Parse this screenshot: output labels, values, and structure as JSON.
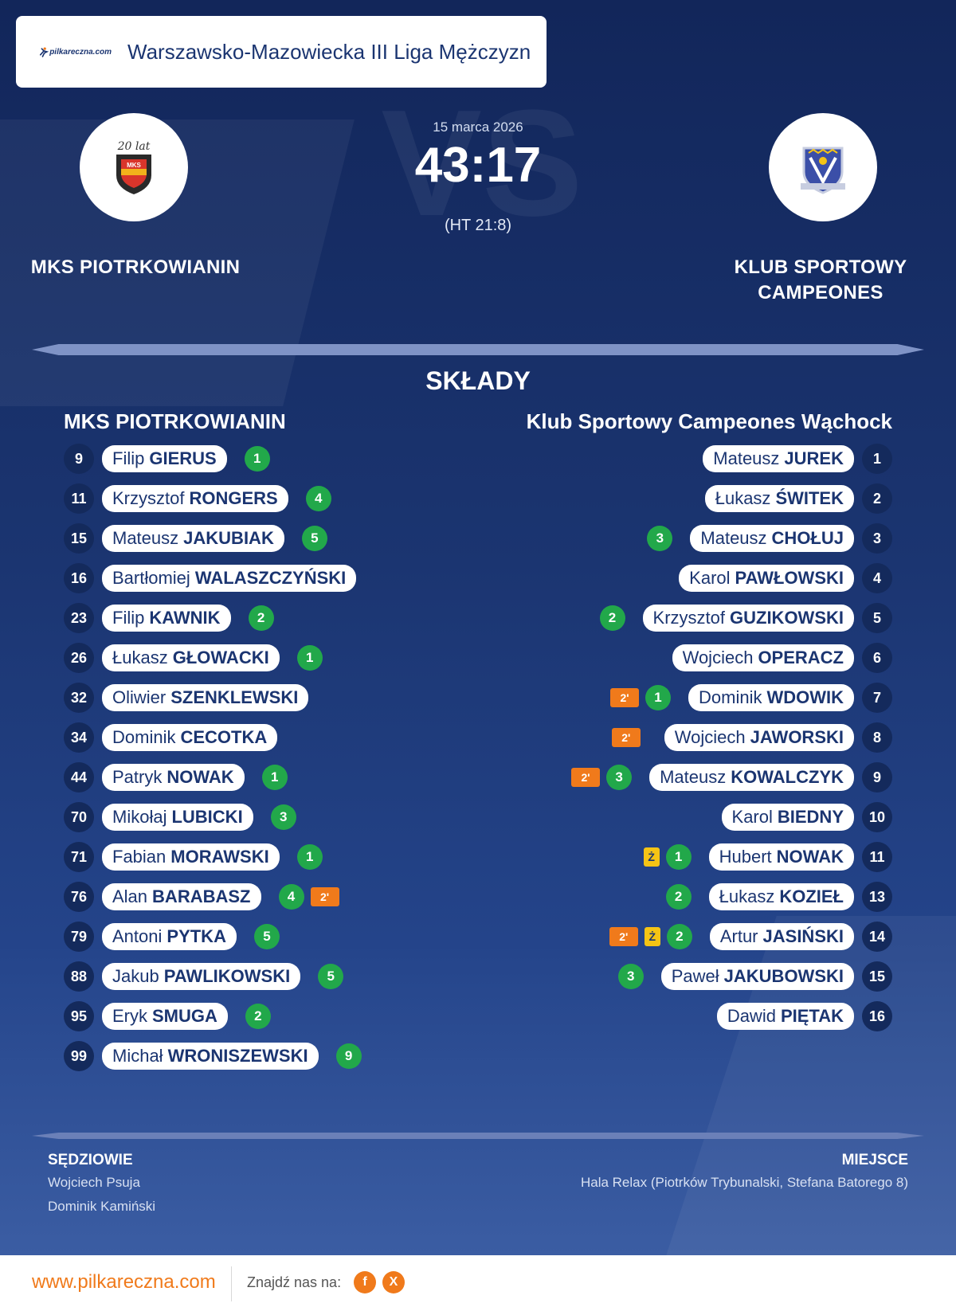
{
  "league": {
    "title": "Warszawsko-Mazowiecka III Liga Mężczyzn",
    "logo_text": "pilkareczna.com"
  },
  "match": {
    "date": "15 marca 2026",
    "score": "43:17",
    "halftime": "(HT 21:8)",
    "home_team": "MKS PIOTRKOWIANIN",
    "away_team_line1": "KLUB SPORTOWY",
    "away_team_line2": "CAMPEONES",
    "home_crest_text": "20 lat",
    "vs_watermark": "VS"
  },
  "lineups": {
    "title": "SKŁADY",
    "home_title": "MKS PIOTRKOWIANIN",
    "away_title": "Klub Sportowy Campeones Wąchock",
    "home_players": [
      {
        "num": "9",
        "first": "Filip",
        "last": "GIERUS",
        "goals": "1",
        "cards": []
      },
      {
        "num": "11",
        "first": "Krzysztof",
        "last": "RONGERS",
        "goals": "4",
        "cards": []
      },
      {
        "num": "15",
        "first": "Mateusz",
        "last": "JAKUBIAK",
        "goals": "5",
        "cards": []
      },
      {
        "num": "16",
        "first": "Bartłomiej",
        "last": "WALASZCZYŃSKI",
        "goals": "",
        "cards": []
      },
      {
        "num": "23",
        "first": "Filip",
        "last": "KAWNIK",
        "goals": "2",
        "cards": []
      },
      {
        "num": "26",
        "first": "Łukasz",
        "last": "GŁOWACKI",
        "goals": "1",
        "cards": []
      },
      {
        "num": "32",
        "first": "Oliwier",
        "last": "SZENKLEWSKI",
        "goals": "",
        "cards": []
      },
      {
        "num": "34",
        "first": "Dominik",
        "last": "CECOTKA",
        "goals": "",
        "cards": []
      },
      {
        "num": "44",
        "first": "Patryk",
        "last": "NOWAK",
        "goals": "1",
        "cards": []
      },
      {
        "num": "70",
        "first": "Mikołaj",
        "last": "LUBICKI",
        "goals": "3",
        "cards": []
      },
      {
        "num": "71",
        "first": "Fabian",
        "last": "MORAWSKI",
        "goals": "1",
        "cards": []
      },
      {
        "num": "76",
        "first": "Alan",
        "last": "BARABASZ",
        "goals": "4",
        "cards": [
          "2'"
        ]
      },
      {
        "num": "79",
        "first": "Antoni",
        "last": "PYTKA",
        "goals": "5",
        "cards": []
      },
      {
        "num": "88",
        "first": "Jakub",
        "last": "PAWLIKOWSKI",
        "goals": "5",
        "cards": []
      },
      {
        "num": "95",
        "first": "Eryk",
        "last": "SMUGA",
        "goals": "2",
        "cards": []
      },
      {
        "num": "99",
        "first": "Michał",
        "last": "WRONISZEWSKI",
        "goals": "9",
        "cards": []
      }
    ],
    "away_players": [
      {
        "num": "1",
        "first": "Mateusz",
        "last": "JUREK",
        "goals": "",
        "cards": []
      },
      {
        "num": "2",
        "first": "Łukasz",
        "last": "ŚWITEK",
        "goals": "",
        "cards": []
      },
      {
        "num": "3",
        "first": "Mateusz",
        "last": "CHOŁUJ",
        "goals": "3",
        "cards": []
      },
      {
        "num": "4",
        "first": "Karol",
        "last": "PAWŁOWSKI",
        "goals": "",
        "cards": []
      },
      {
        "num": "5",
        "first": "Krzysztof",
        "last": "GUZIKOWSKI",
        "goals": "2",
        "cards": []
      },
      {
        "num": "6",
        "first": "Wojciech",
        "last": "OPERACZ",
        "goals": "",
        "cards": []
      },
      {
        "num": "7",
        "first": "Dominik",
        "last": "WDOWIK",
        "goals": "1",
        "cards": [
          "2'"
        ]
      },
      {
        "num": "8",
        "first": "Wojciech",
        "last": "JAWORSKI",
        "goals": "",
        "cards": [
          "2'"
        ]
      },
      {
        "num": "9",
        "first": "Mateusz",
        "last": "KOWALCZYK",
        "goals": "3",
        "cards": [
          "2'"
        ]
      },
      {
        "num": "10",
        "first": "Karol",
        "last": "BIEDNY",
        "goals": "",
        "cards": []
      },
      {
        "num": "11",
        "first": "Hubert",
        "last": "NOWAK",
        "goals": "1",
        "cards": [
          "Ż"
        ]
      },
      {
        "num": "13",
        "first": "Łukasz",
        "last": "KOZIEŁ",
        "goals": "2",
        "cards": []
      },
      {
        "num": "14",
        "first": "Artur",
        "last": "JASIŃSKI",
        "goals": "2",
        "cards": [
          "Ż",
          "2'"
        ]
      },
      {
        "num": "15",
        "first": "Paweł",
        "last": "JAKUBOWSKI",
        "goals": "3",
        "cards": []
      },
      {
        "num": "16",
        "first": "Dawid",
        "last": "PIĘTAK",
        "goals": "",
        "cards": []
      }
    ]
  },
  "officials": {
    "label": "SĘDZIOWIE",
    "names": [
      "Wojciech Psuja",
      "Dominik Kamiński"
    ]
  },
  "venue": {
    "label": "MIEJSCE",
    "text": "Hala Relax (Piotrków Trybunalski, Stefana Batorego 8)"
  },
  "footer": {
    "site": "www.pilkareczna.com",
    "find_us": "Znajdź nas na:",
    "social": [
      {
        "icon": "facebook-icon",
        "glyph": "f"
      },
      {
        "icon": "x-icon",
        "glyph": "X"
      }
    ]
  },
  "colors": {
    "background": "#1b3571",
    "goal_badge": "#22a84a",
    "penalty_card": "#f07a1b",
    "yellow_card": "#f5c415",
    "brand_orange": "#f07a1b"
  }
}
